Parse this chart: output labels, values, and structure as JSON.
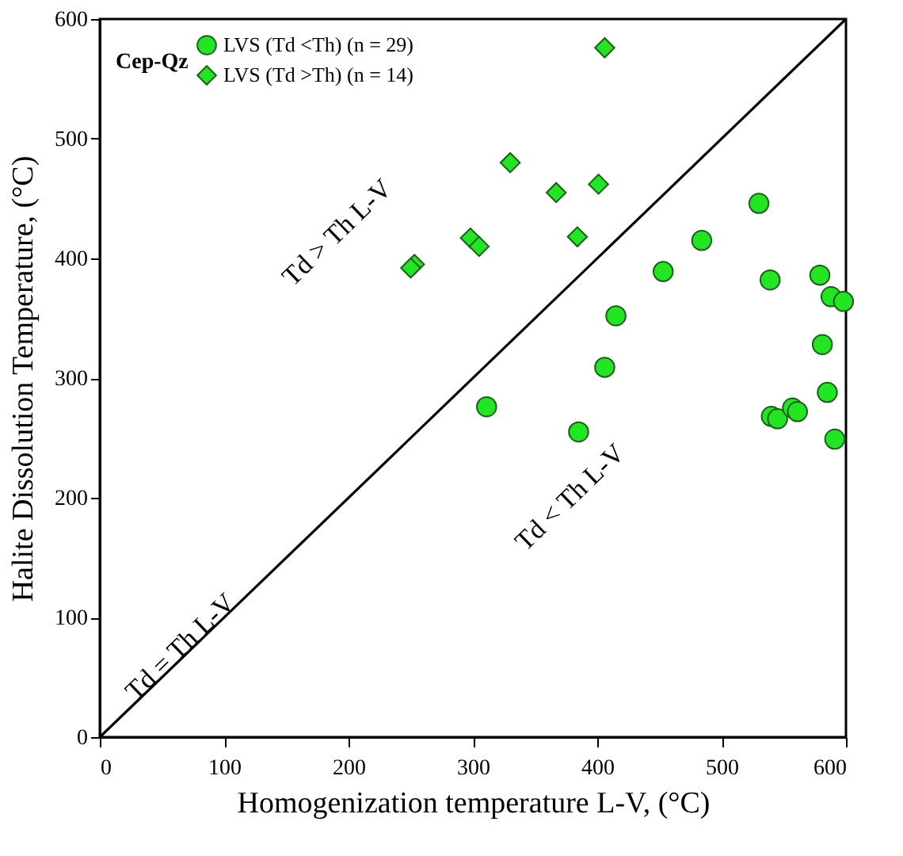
{
  "chart_data": {
    "type": "scatter",
    "xlabel": "Homogenization temperature L-V, (°C)",
    "ylabel": "Halite Dissolution Temperature, (°C)",
    "legend_title": "Cep-Qz",
    "legend": "top left",
    "grid": false,
    "xlim": [
      0,
      600
    ],
    "ylim": [
      0,
      600
    ],
    "xticks": [
      0,
      100,
      200,
      300,
      400,
      500,
      600
    ],
    "yticks": [
      0,
      100,
      200,
      300,
      400,
      500,
      600
    ],
    "series": [
      {
        "name": "LVS (Td <Th) (n = 29)",
        "marker": "circle",
        "color": "#22e622",
        "x": [
          530,
          484,
          453,
          539,
          579,
          588,
          598,
          415,
          581,
          406,
          585,
          311,
          385,
          540,
          545,
          557,
          561,
          591
        ],
        "values": [
          446,
          415,
          389,
          382,
          386,
          368,
          364,
          352,
          328,
          309,
          288,
          276,
          255,
          268,
          266,
          275,
          272,
          249
        ]
      },
      {
        "name": "LVS (Td >Th) (n = 14)",
        "marker": "diamond",
        "color": "#22e622",
        "x": [
          406,
          330,
          367,
          401,
          384,
          298,
          305,
          253,
          250
        ],
        "values": [
          576,
          480,
          455,
          462,
          418,
          417,
          410,
          395,
          392
        ]
      },
      {
        "type": "line",
        "color": "#000000",
        "x": [
          0,
          600
        ],
        "values": [
          0,
          600
        ]
      }
    ],
    "annotations": [
      {
        "text": "Td = Th L-V",
        "x": 65,
        "y": 75
      },
      "Td > Th L-V",
      "Td < Th L-V"
    ]
  }
}
